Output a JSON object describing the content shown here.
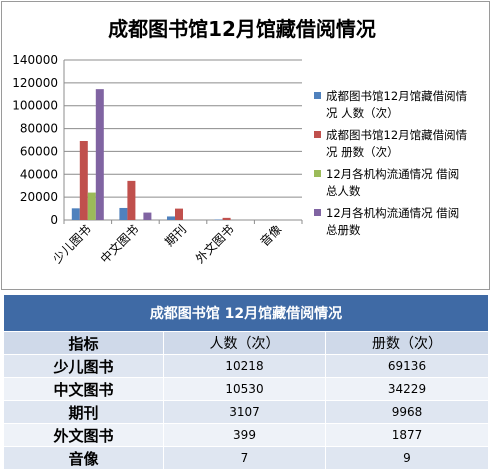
{
  "chart_data": {
    "type": "bar",
    "title": "成都图书馆12月馆藏借阅情况",
    "categories": [
      "少儿图书",
      "中文图书",
      "期刊",
      "外文图书",
      "音像"
    ],
    "ylim": [
      0,
      140000
    ],
    "yticks": [
      "0",
      "20000",
      "40000",
      "60000",
      "80000",
      "100000",
      "120000",
      "140000"
    ],
    "grid": true,
    "legend_position": "right",
    "series": [
      {
        "name": "成都图书馆12月馆藏借阅情况 人数（次）",
        "color": "#4f81bd",
        "values": [
          10218,
          10530,
          3107,
          399,
          7
        ]
      },
      {
        "name": "成都图书馆12月馆藏借阅情况 册数（次）",
        "color": "#c0504d",
        "values": [
          69136,
          34229,
          9968,
          1877,
          9
        ]
      },
      {
        "name": "12月各机构流通情况 借阅总人数",
        "color": "#9bbb59",
        "values": [
          24000,
          0,
          0,
          0,
          0
        ]
      },
      {
        "name": "12月各机构流通情况 借阅总册数",
        "color": "#8064a2",
        "values": [
          114500,
          6500,
          0,
          0,
          0
        ]
      }
    ]
  },
  "table": {
    "title": "成都图书馆 12月馆藏借阅情况",
    "header": {
      "name": "指标",
      "col1": "人数（次）",
      "col2": "册数（次）"
    },
    "rows": [
      {
        "name": "少儿图书",
        "col1": "10218",
        "col2": "69136"
      },
      {
        "name": "中文图书",
        "col1": "10530",
        "col2": "34229"
      },
      {
        "name": "期刊",
        "col1": "3107",
        "col2": "9968"
      },
      {
        "name": "外文图书",
        "col1": "399",
        "col2": "1877"
      },
      {
        "name": "音像",
        "col1": "7",
        "col2": "9"
      }
    ]
  }
}
